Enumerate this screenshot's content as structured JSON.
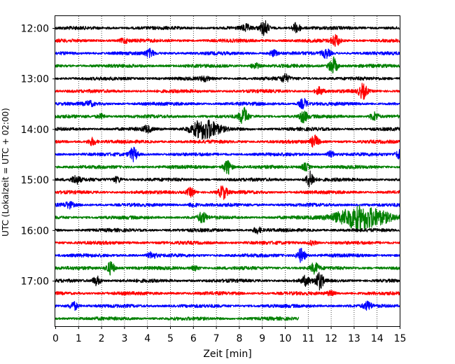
{
  "chart_data": {
    "type": "line",
    "title": "",
    "xlabel": "Zeit  [min]",
    "ylabel": "UTC (Lokalzeit = UTC + 02:00)",
    "xlim": [
      0,
      15
    ],
    "x_ticks": [
      "0",
      "1",
      "2",
      "3",
      "4",
      "5",
      "6",
      "7",
      "8",
      "9",
      "10",
      "11",
      "12",
      "13",
      "14",
      "15"
    ],
    "y_ticks": [
      "12:00",
      "13:00",
      "14:00",
      "15:00",
      "16:00",
      "17:00"
    ],
    "grid": "vertical dotted",
    "trace_interval_minutes": 15,
    "trace_colors": [
      "#000000",
      "#ff0000",
      "#0000ff",
      "#008000"
    ],
    "traces": [
      {
        "start": "12:00",
        "color": "#000000",
        "end_min": 15,
        "events": [
          {
            "t": 9.1,
            "amp": 10
          },
          {
            "t": 10.5,
            "amp": 7
          },
          {
            "t": 8.3,
            "amp": 4
          }
        ]
      },
      {
        "start": "12:15",
        "color": "#ff0000",
        "end_min": 15,
        "events": [
          {
            "t": 12.2,
            "amp": 8
          },
          {
            "t": 3.0,
            "amp": 3
          }
        ]
      },
      {
        "start": "12:30",
        "color": "#0000ff",
        "end_min": 15,
        "events": [
          {
            "t": 4.1,
            "amp": 5
          },
          {
            "t": 11.8,
            "amp": 6
          },
          {
            "t": 9.5,
            "amp": 4
          }
        ]
      },
      {
        "start": "12:45",
        "color": "#008000",
        "end_min": 15,
        "events": [
          {
            "t": 12.1,
            "amp": 12
          },
          {
            "t": 8.7,
            "amp": 4
          }
        ]
      },
      {
        "start": "13:00",
        "color": "#000000",
        "end_min": 15,
        "events": [
          {
            "t": 10.0,
            "amp": 5
          },
          {
            "t": 6.5,
            "amp": 3
          }
        ]
      },
      {
        "start": "13:15",
        "color": "#ff0000",
        "end_min": 15,
        "events": [
          {
            "t": 13.4,
            "amp": 10
          },
          {
            "t": 11.5,
            "amp": 5
          }
        ]
      },
      {
        "start": "13:30",
        "color": "#0000ff",
        "end_min": 15,
        "events": [
          {
            "t": 10.8,
            "amp": 7
          },
          {
            "t": 1.5,
            "amp": 3
          }
        ]
      },
      {
        "start": "13:45",
        "color": "#008000",
        "end_min": 15,
        "events": [
          {
            "t": 8.2,
            "amp": 12
          },
          {
            "t": 10.8,
            "amp": 8
          },
          {
            "t": 13.9,
            "amp": 6
          },
          {
            "t": 2.0,
            "amp": 3
          }
        ]
      },
      {
        "start": "14:00",
        "color": "#000000",
        "end_min": 15,
        "events": [
          {
            "t": 6.5,
            "amp": 14,
            "dur": 1.2
          },
          {
            "t": 4.0,
            "amp": 4
          }
        ]
      },
      {
        "start": "14:15",
        "color": "#ff0000",
        "end_min": 15,
        "events": [
          {
            "t": 11.3,
            "amp": 8
          },
          {
            "t": 1.6,
            "amp": 5
          }
        ]
      },
      {
        "start": "14:30",
        "color": "#0000ff",
        "end_min": 15,
        "events": [
          {
            "t": 3.4,
            "amp": 9
          },
          {
            "t": 15.0,
            "amp": 6
          },
          {
            "t": 12.0,
            "amp": 4
          }
        ]
      },
      {
        "start": "14:45",
        "color": "#008000",
        "end_min": 15,
        "events": [
          {
            "t": 7.5,
            "amp": 10
          },
          {
            "t": 10.9,
            "amp": 5
          }
        ]
      },
      {
        "start": "15:00",
        "color": "#000000",
        "end_min": 15,
        "events": [
          {
            "t": 11.1,
            "amp": 11
          },
          {
            "t": 0.9,
            "amp": 5
          },
          {
            "t": 2.7,
            "amp": 4
          }
        ]
      },
      {
        "start": "15:15",
        "color": "#ff0000",
        "end_min": 15,
        "events": [
          {
            "t": 7.3,
            "amp": 9
          },
          {
            "t": 5.9,
            "amp": 6
          }
        ]
      },
      {
        "start": "15:30",
        "color": "#0000ff",
        "end_min": 15,
        "events": [
          {
            "t": 0.6,
            "amp": 4
          },
          {
            "t": 6.0,
            "amp": 3
          }
        ]
      },
      {
        "start": "15:45",
        "color": "#008000",
        "end_min": 15,
        "events": [
          {
            "t": 13.3,
            "amp": 16,
            "dur": 2.2
          },
          {
            "t": 6.4,
            "amp": 7
          }
        ]
      },
      {
        "start": "16:00",
        "color": "#000000",
        "end_min": 15,
        "events": [
          {
            "t": 8.8,
            "amp": 4
          }
        ]
      },
      {
        "start": "16:15",
        "color": "#ff0000",
        "end_min": 15,
        "events": [
          {
            "t": 11.2,
            "amp": 3
          }
        ]
      },
      {
        "start": "16:30",
        "color": "#0000ff",
        "end_min": 15,
        "events": [
          {
            "t": 10.7,
            "amp": 10
          },
          {
            "t": 4.2,
            "amp": 4
          }
        ]
      },
      {
        "start": "16:45",
        "color": "#008000",
        "end_min": 15,
        "events": [
          {
            "t": 2.4,
            "amp": 9
          },
          {
            "t": 11.3,
            "amp": 7
          },
          {
            "t": 6.1,
            "amp": 3
          }
        ]
      },
      {
        "start": "17:00",
        "color": "#000000",
        "end_min": 15,
        "events": [
          {
            "t": 11.5,
            "amp": 11
          },
          {
            "t": 1.8,
            "amp": 6
          },
          {
            "t": 10.9,
            "amp": 6
          }
        ]
      },
      {
        "start": "17:15",
        "color": "#ff0000",
        "end_min": 15,
        "events": [
          {
            "t": 12.0,
            "amp": 3
          }
        ]
      },
      {
        "start": "17:30",
        "color": "#0000ff",
        "end_min": 15,
        "events": [
          {
            "t": 0.8,
            "amp": 6
          },
          {
            "t": 13.6,
            "amp": 5
          }
        ]
      },
      {
        "start": "17:45",
        "color": "#008000",
        "end_min": 10.6,
        "events": []
      }
    ]
  }
}
